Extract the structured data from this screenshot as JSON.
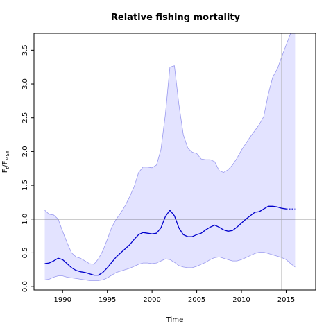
{
  "chart_data": {
    "type": "line",
    "title": "Relative fishing mortality",
    "xlabel": "Time",
    "ylabel": {
      "main": "F",
      "sub1": "t",
      "mid": "/F",
      "sub2": "MSY"
    },
    "xlim": [
      1986.8,
      2018.3
    ],
    "ylim": [
      -0.05,
      3.75
    ],
    "x_ticks": [
      1990,
      1995,
      2000,
      2005,
      2010,
      2015
    ],
    "y_ticks": [
      "0.0",
      "0.5",
      "1.0",
      "1.5",
      "2.0",
      "2.5",
      "3.0",
      "3.5"
    ],
    "reference_line": 1.0,
    "vline_x": 2014.5,
    "colors": {
      "line": "#0000cc",
      "band": "#e3e3ff",
      "band_edge": "#9999ee",
      "ref": "#333333",
      "vline": "#aaaaaa"
    },
    "series": [
      {
        "x": [
          1988,
          1988.5,
          1989,
          1989.5,
          1990,
          1990.5,
          1991,
          1991.5,
          1992,
          1992.5,
          1993,
          1993.5,
          1994,
          1994.5,
          1995,
          1995.5,
          1996,
          1996.5,
          1997,
          1997.5,
          1998,
          1998.5,
          1999,
          1999.5,
          2000,
          2000.5,
          2001,
          2001.5,
          2002,
          2002.5,
          2003,
          2003.5,
          2004,
          2004.5,
          2005,
          2005.5,
          2006,
          2006.5,
          2007,
          2007.5,
          2008,
          2008.5,
          2009,
          2009.5,
          2010,
          2010.5,
          2011,
          2011.5,
          2012,
          2012.5,
          2013,
          2013.5,
          2014,
          2014.5,
          2015
        ],
        "estimate": [
          0.34,
          0.35,
          0.38,
          0.42,
          0.4,
          0.34,
          0.28,
          0.24,
          0.22,
          0.21,
          0.19,
          0.17,
          0.17,
          0.21,
          0.28,
          0.36,
          0.44,
          0.5,
          0.56,
          0.62,
          0.7,
          0.77,
          0.8,
          0.79,
          0.78,
          0.79,
          0.87,
          1.04,
          1.13,
          1.05,
          0.87,
          0.77,
          0.74,
          0.74,
          0.77,
          0.79,
          0.84,
          0.88,
          0.91,
          0.88,
          0.84,
          0.82,
          0.83,
          0.88,
          0.94,
          1.0,
          1.05,
          1.1,
          1.11,
          1.15,
          1.19,
          1.19,
          1.18,
          1.16,
          1.15
        ],
        "upper": [
          1.13,
          1.07,
          1.06,
          1.0,
          0.82,
          0.65,
          0.5,
          0.44,
          0.42,
          0.38,
          0.34,
          0.33,
          0.41,
          0.53,
          0.7,
          0.88,
          1.0,
          1.09,
          1.2,
          1.33,
          1.48,
          1.69,
          1.77,
          1.77,
          1.76,
          1.8,
          2.03,
          2.56,
          3.25,
          3.27,
          2.7,
          2.25,
          2.05,
          1.99,
          1.97,
          1.89,
          1.88,
          1.88,
          1.85,
          1.72,
          1.69,
          1.73,
          1.8,
          1.9,
          2.02,
          2.12,
          2.22,
          2.31,
          2.4,
          2.52,
          2.85,
          3.1,
          3.22,
          3.4,
          3.58
        ],
        "lower": [
          0.1,
          0.11,
          0.14,
          0.16,
          0.16,
          0.14,
          0.13,
          0.12,
          0.11,
          0.1,
          0.09,
          0.09,
          0.09,
          0.1,
          0.13,
          0.17,
          0.21,
          0.23,
          0.25,
          0.27,
          0.3,
          0.33,
          0.35,
          0.35,
          0.34,
          0.35,
          0.38,
          0.41,
          0.4,
          0.36,
          0.31,
          0.29,
          0.28,
          0.28,
          0.3,
          0.33,
          0.36,
          0.4,
          0.43,
          0.44,
          0.42,
          0.4,
          0.38,
          0.38,
          0.4,
          0.43,
          0.46,
          0.49,
          0.51,
          0.51,
          0.49,
          0.47,
          0.45,
          0.43,
          0.4
        ]
      },
      {
        "x": [
          2015,
          2015.5,
          2016
        ],
        "estimate": [
          1.15,
          1.15,
          1.15
        ],
        "upper": [
          3.58,
          3.75,
          3.75
        ],
        "lower": [
          0.4,
          0.34,
          0.29
        ]
      }
    ]
  }
}
